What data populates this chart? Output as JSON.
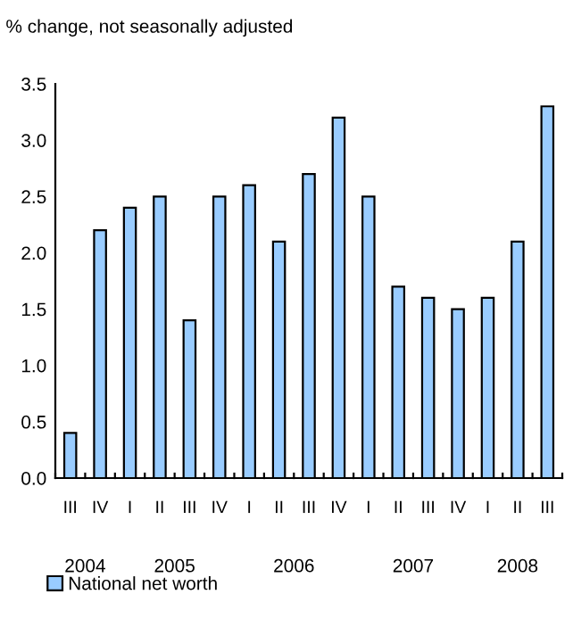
{
  "chart_data": {
    "type": "bar",
    "title": "% change, not seasonally adjusted",
    "categories": [
      "III",
      "IV",
      "I",
      "II",
      "III",
      "IV",
      "I",
      "II",
      "III",
      "IV",
      "I",
      "II",
      "III",
      "IV",
      "I",
      "II",
      "III"
    ],
    "series": [
      {
        "name": "National net worth",
        "color": "#99ccff",
        "values": [
          0.4,
          2.2,
          2.4,
          2.5,
          1.4,
          2.5,
          2.6,
          2.1,
          2.7,
          3.2,
          2.5,
          1.7,
          1.6,
          1.5,
          1.6,
          2.1,
          3.3
        ]
      }
    ],
    "annotations": [
      "2004",
      "2005",
      "2006",
      "2007",
      "2008"
    ],
    "ylim": [
      0,
      3.5
    ],
    "yticks": [
      {
        "value": 0,
        "label": "0.0"
      },
      {
        "value": 0.5,
        "label": "0.5"
      },
      {
        "value": 1,
        "label": "1.0"
      },
      {
        "value": 1.5,
        "label": "1.5"
      },
      {
        "value": 2,
        "label": "2.0"
      },
      {
        "value": 2.5,
        "label": "2.5"
      },
      {
        "value": 3,
        "label": "3.0"
      },
      {
        "value": 3.5,
        "label": "3.5"
      }
    ],
    "grid": false,
    "legend": "bottom left"
  }
}
